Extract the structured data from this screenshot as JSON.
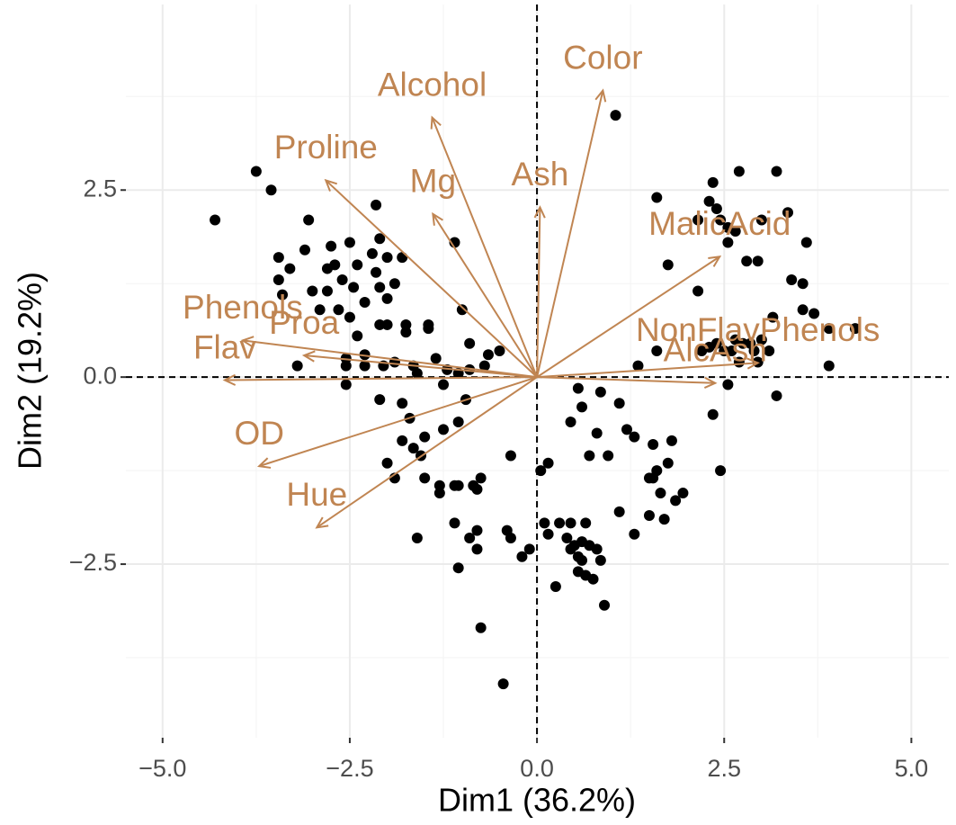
{
  "chart_data": {
    "type": "scatter",
    "x_label": "Dim1 (36.2%)",
    "y_label": "Dim2 (19.2%)",
    "xlim": [
      -5.49,
      5.5
    ],
    "ylim": [
      -4.82,
      4.98
    ],
    "xticks": [
      {
        "value": -5,
        "label": "−5.0"
      },
      {
        "value": -2.5,
        "label": "−2.5"
      },
      {
        "value": 0,
        "label": "0.0"
      },
      {
        "value": 2.5,
        "label": "2.5"
      },
      {
        "value": 5,
        "label": "5.0"
      }
    ],
    "yticks": [
      {
        "value": -2.5,
        "label": "−2.5"
      },
      {
        "value": 0,
        "label": "0.0"
      },
      {
        "value": 2.5,
        "label": "2.5"
      }
    ],
    "x_minor_grid": [
      -3.75,
      -1.25,
      1.25,
      3.75
    ],
    "y_minor_grid": [
      -3.75,
      -1.25,
      1.25,
      3.75
    ],
    "grid": true,
    "zero_lines": true,
    "color": "#000000",
    "x": [
      -4.3,
      -3.75,
      -3.55,
      -3.45,
      -3.45,
      -3.3,
      -3.4,
      -3.1,
      -3.05,
      -3.0,
      -2.9,
      -2.75,
      -2.8,
      -2.7,
      -2.6,
      -2.5,
      -2.4,
      -2.45,
      -2.3,
      -2.2,
      -2.1,
      -2.0,
      -2.15,
      -2.1,
      -2.0,
      -1.9,
      -1.8,
      -2.15,
      -2.0,
      -2.1,
      -2.65,
      -2.5,
      -2.8,
      -2.4,
      -1.75,
      -1.75,
      -1.45,
      -1.45,
      -1.1,
      -1.0,
      -0.9,
      -0.65,
      -0.5,
      -3.2,
      -2.55,
      -2.55,
      -2.55,
      -2.3,
      -2.3,
      -2.05,
      -1.9,
      -1.65,
      -1.6,
      -1.35,
      -1.2,
      -1.05,
      -0.9,
      -0.7,
      -2.1,
      -1.7,
      -1.65,
      -1.5,
      -1.25,
      -1.05,
      -1.25,
      -0.95,
      -1.8,
      -1.8,
      -2.0,
      -1.9,
      -1.55,
      -1.5,
      -1.6,
      -1.3,
      -1.1,
      -1.05,
      -0.85,
      -0.8,
      -0.75,
      -1.3,
      -1.1,
      -0.9,
      -0.8,
      -0.8,
      -1.05,
      -0.75,
      -0.45,
      -0.4,
      -0.35,
      -0.35,
      -0.2,
      -0.1,
      0.05,
      0.15,
      0.1,
      0.15,
      0.25,
      0.3,
      0.45,
      0.4,
      0.45,
      0.5,
      0.55,
      0.6,
      0.55,
      0.65,
      0.65,
      0.6,
      0.7,
      0.75,
      0.8,
      0.85,
      0.9,
      0.45,
      0.55,
      0.6,
      0.7,
      0.8,
      0.85,
      0.95,
      1.05,
      1.1,
      1.1,
      1.2,
      1.3,
      1.3,
      1.35,
      1.5,
      1.5,
      1.55,
      1.6,
      1.55,
      1.65,
      1.75,
      1.7,
      1.8,
      1.85,
      1.95,
      1.75,
      1.6,
      1.6,
      2.15,
      2.15,
      2.3,
      2.35,
      2.4,
      2.45,
      2.55,
      2.55,
      2.65,
      2.7,
      2.8,
      2.95,
      3.0,
      2.35,
      2.45,
      2.55,
      2.3,
      2.4,
      2.5,
      2.6,
      2.65,
      2.7,
      2.75,
      2.85,
      2.9,
      2.95,
      3.0,
      3.1,
      3.15,
      3.2,
      3.2,
      3.35,
      3.4,
      3.55,
      3.55,
      3.6,
      3.7,
      3.9,
      3.9,
      4.25,
      2.2
    ],
    "y": [
      2.1,
      2.75,
      2.5,
      1.6,
      1.3,
      1.45,
      1.1,
      1.7,
      2.1,
      1.15,
      0.9,
      1.75,
      1.45,
      1.5,
      1.3,
      1.8,
      1.5,
      1.2,
      1.0,
      1.65,
      1.85,
      1.6,
      1.4,
      1.2,
      1.05,
      1.25,
      1.6,
      2.3,
      0.7,
      0.7,
      0.9,
      0.8,
      1.15,
      0.55,
      0.7,
      0.6,
      0.7,
      0.65,
      1.8,
      0.9,
      0.45,
      0.3,
      0.35,
      0.15,
      0.25,
      0.15,
      -0.1,
      0.3,
      0.15,
      0.15,
      0.2,
      0.15,
      0.05,
      0.25,
      0.1,
      0.05,
      0.1,
      0.15,
      -0.3,
      -0.55,
      -0.95,
      -0.8,
      -0.7,
      -0.6,
      -0.1,
      -0.3,
      -0.35,
      -0.85,
      -1.15,
      -1.35,
      -1.05,
      -1.35,
      -2.15,
      -1.45,
      -1.45,
      -1.45,
      -1.45,
      -1.5,
      -1.35,
      -1.55,
      -1.95,
      -2.15,
      -2.05,
      -2.3,
      -2.55,
      -3.35,
      -4.1,
      -2.05,
      -2.15,
      -1.05,
      -2.4,
      -2.3,
      -1.25,
      -1.15,
      -1.95,
      -2.1,
      -2.8,
      -1.95,
      -1.95,
      -2.15,
      -2.3,
      -2.25,
      -2.4,
      -2.45,
      -2.6,
      -2.65,
      -1.95,
      -2.2,
      -2.25,
      -2.7,
      -2.3,
      -2.45,
      -3.05,
      -0.6,
      -0.15,
      -0.4,
      -1.05,
      -0.75,
      -0.2,
      -1.05,
      3.5,
      -0.35,
      -1.8,
      -0.7,
      -2.1,
      -0.8,
      0.15,
      -1.35,
      -1.85,
      -1.35,
      -1.25,
      -0.9,
      -1.55,
      -1.15,
      -1.9,
      -0.85,
      -1.65,
      -1.55,
      1.5,
      2.4,
      0.35,
      1.15,
      2.1,
      2.35,
      2.6,
      2.25,
      2.1,
      2.0,
      1.8,
      1.95,
      2.75,
      1.55,
      1.55,
      2.1,
      -0.5,
      -1.25,
      -0.1,
      0.4,
      0.45,
      0.35,
      0.35,
      0.5,
      0.2,
      0.45,
      0.45,
      0.35,
      0.2,
      0.5,
      0.35,
      0.8,
      -0.25,
      2.75,
      2.2,
      1.3,
      0.9,
      1.25,
      1.8,
      0.85,
      0.15,
      0.65,
      0.65,
      0.35
    ],
    "arrows": {
      "color": "#c08552",
      "labels": [
        "Color",
        "Alcohol",
        "Proline",
        "Mg",
        "Ash",
        "MalicAcid",
        "Phenols",
        "Proa",
        "Flav",
        "OD",
        "Hue",
        "NonFlavPhenols",
        "AlcAsh"
      ],
      "x": [
        0.88,
        -1.4,
        -2.82,
        -1.39,
        0.04,
        2.44,
        -3.93,
        -3.11,
        -4.17,
        -3.71,
        -2.94,
        2.95,
        2.38
      ],
      "y": [
        3.83,
        3.47,
        2.63,
        2.18,
        2.27,
        1.61,
        0.49,
        0.29,
        -0.04,
        -1.19,
        -2.01,
        0.19,
        -0.08
      ]
    }
  }
}
